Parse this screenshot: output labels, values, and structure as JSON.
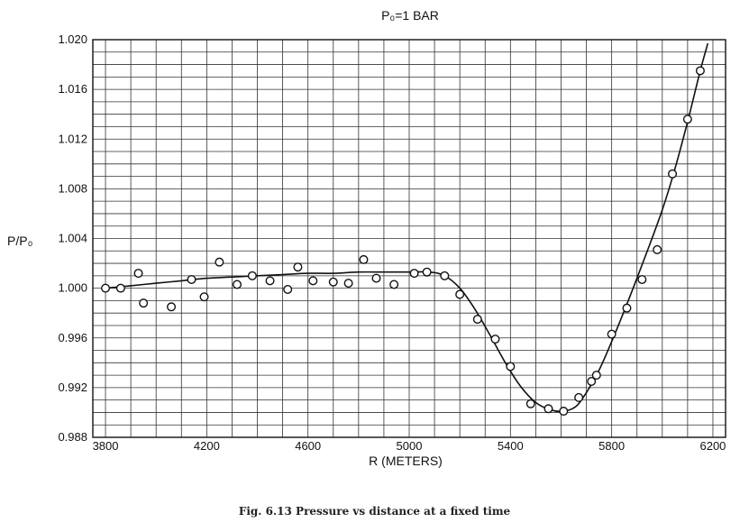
{
  "chart_data": {
    "type": "scatter",
    "title": "P₀=1 BAR",
    "xlabel": "R (METERS)",
    "ylabel": "P/P₀",
    "xlim": [
      3750,
      6250
    ],
    "ylim": [
      0.988,
      1.02
    ],
    "x_ticks": [
      3800,
      4200,
      4600,
      5000,
      5400,
      5800,
      6200
    ],
    "y_ticks": [
      0.988,
      0.992,
      0.996,
      1.0,
      1.004,
      1.008,
      1.012,
      1.016,
      1.02
    ],
    "y_tick_labels": [
      "0.988",
      "0.992",
      "0.996",
      "1.000",
      "1.004",
      "1.008",
      "1.012",
      "1.016",
      "1.020"
    ],
    "x_tick_labels": [
      "3800",
      "4200",
      "4600",
      "5000",
      "5400",
      "5800",
      "6200"
    ],
    "grid": true,
    "series": [
      {
        "kind": "points",
        "marker": "open-circle",
        "x": [
          3800,
          3860,
          3930,
          3950,
          4060,
          4140,
          4190,
          4250,
          4320,
          4380,
          4450,
          4520,
          4560,
          4620,
          4700,
          4760,
          4820,
          4870,
          4940,
          5020,
          5070,
          5140,
          5200,
          5270,
          5340,
          5400,
          5480,
          5550,
          5610,
          5670,
          5720,
          5740,
          5800,
          5860,
          5920,
          5980,
          6040,
          6100,
          6150
        ],
        "y": [
          1.0,
          1.0,
          1.0012,
          0.9988,
          0.9985,
          1.0007,
          0.9993,
          1.0021,
          1.0003,
          1.001,
          1.0006,
          0.9999,
          1.0017,
          1.0006,
          1.0005,
          1.0004,
          1.0023,
          1.0008,
          1.0003,
          1.0012,
          1.0013,
          1.001,
          0.9995,
          0.9975,
          0.9959,
          0.9937,
          0.9907,
          0.9903,
          0.9901,
          0.9912,
          0.9925,
          0.993,
          0.9963,
          0.9984,
          1.0007,
          1.0031,
          1.0092,
          1.0136,
          1.0175
        ]
      },
      {
        "kind": "fitted-curve",
        "x": [
          3800,
          3900,
          4000,
          4100,
          4200,
          4300,
          4400,
          4500,
          4600,
          4700,
          4800,
          4900,
          5000,
          5080,
          5140,
          5200,
          5260,
          5320,
          5380,
          5440,
          5500,
          5560,
          5610,
          5660,
          5700,
          5750,
          5800,
          5850,
          5900,
          5950,
          6000,
          6050,
          6100,
          6150,
          6180
        ],
        "y": [
          1.0,
          1.0002,
          1.0004,
          1.0006,
          1.0008,
          1.0009,
          1.001,
          1.0011,
          1.0012,
          1.0012,
          1.0013,
          1.0013,
          1.0013,
          1.0013,
          1.001,
          1.0,
          0.9983,
          0.9962,
          0.994,
          0.9921,
          0.9908,
          0.9902,
          0.9901,
          0.9905,
          0.9916,
          0.9934,
          0.9957,
          0.9982,
          1.0008,
          1.0035,
          1.0063,
          1.0096,
          1.0134,
          1.0175,
          1.0197
        ]
      }
    ]
  },
  "caption": "Fig.  6.13  Pressure vs distance at a fixed time"
}
